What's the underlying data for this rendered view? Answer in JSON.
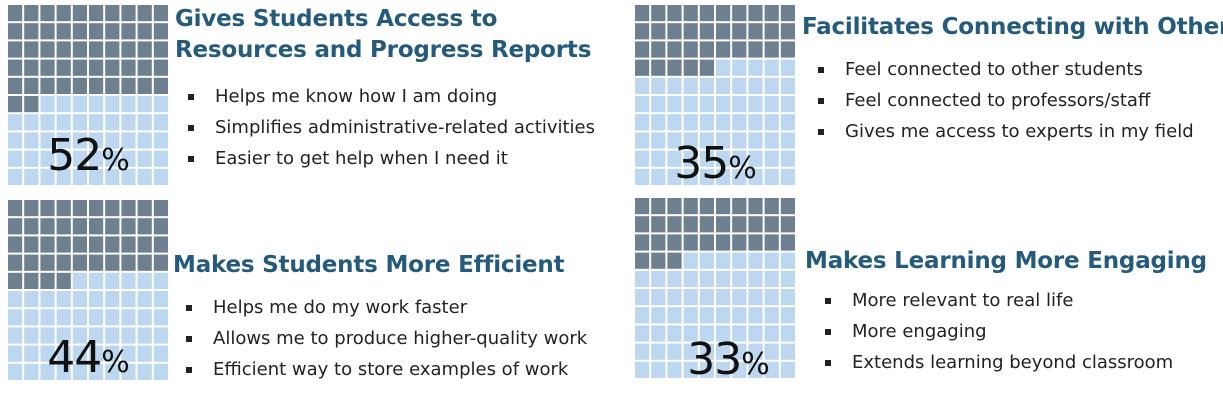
{
  "colors": {
    "filled": "#6e7f90",
    "empty": "#bcd7ef",
    "title": "#245a7c"
  },
  "chart_data": [
    {
      "type": "waffle",
      "value": 52,
      "percent_label": "52",
      "percent_symbol": "%",
      "title": "Gives Students Access to Resources and Progress Reports",
      "bullets": [
        "Helps me know how I am doing",
        "Simplifies administrative-related activities",
        "Easier to get help when I need it"
      ]
    },
    {
      "type": "waffle",
      "value": 35,
      "percent_label": "35",
      "percent_symbol": "%",
      "title": "Facilitates Connecting with Others",
      "bullets": [
        "Feel connected to other students",
        "Feel connected to professors/staff",
        "Gives me access to experts in my field"
      ]
    },
    {
      "type": "waffle",
      "value": 44,
      "percent_label": "44",
      "percent_symbol": "%",
      "title": "Makes Students More Efficient",
      "bullets": [
        "Helps me do my work faster",
        "Allows me to produce higher-quality work",
        "Efficient way to store examples of work"
      ]
    },
    {
      "type": "waffle",
      "value": 33,
      "percent_label": "33",
      "percent_symbol": "%",
      "title": "Makes Learning More Engaging",
      "bullets": [
        "More relevant to real life",
        "More engaging",
        "Extends learning beyond classroom"
      ]
    }
  ]
}
